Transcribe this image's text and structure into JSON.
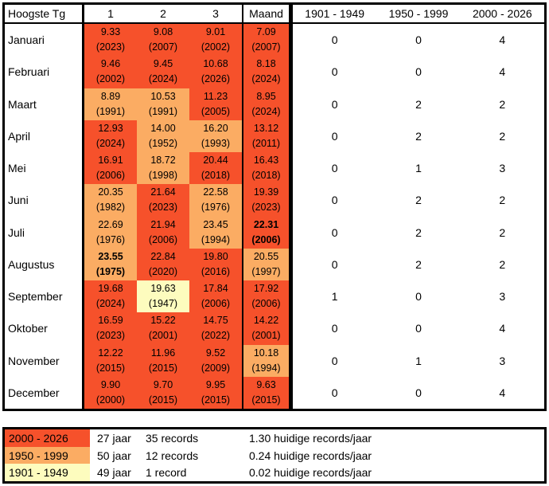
{
  "chart_data": {
    "type": "table",
    "title": "Hoogste Tg",
    "description": "Heatmap table of highest monthly mean temperature records (top 3 + month record) colored by period of occurrence, with record counts per period",
    "period_colors": {
      "2000-2026": "#F6512B",
      "1950-1999": "#FBAC63",
      "1901-1949": "#FDFCBE"
    },
    "header": {
      "label": "Hoogste Tg",
      "rank_cols": [
        "1",
        "2",
        "3",
        "Maand"
      ],
      "period_cols": [
        "1901 - 1949",
        "1950 - 1999",
        "2000 - 2026"
      ]
    },
    "rows": [
      {
        "month": "Januari",
        "cells": [
          {
            "v": "9.33",
            "y": "(2023)",
            "p": "2000-2026"
          },
          {
            "v": "9.08",
            "y": "(2007)",
            "p": "2000-2026"
          },
          {
            "v": "9.01",
            "y": "(2002)",
            "p": "2000-2026"
          },
          {
            "v": "7.09",
            "y": "(2007)",
            "p": "2000-2026"
          }
        ],
        "counts": [
          "0",
          "0",
          "4"
        ]
      },
      {
        "month": "Februari",
        "cells": [
          {
            "v": "9.46",
            "y": "(2002)",
            "p": "2000-2026"
          },
          {
            "v": "9.45",
            "y": "(2024)",
            "p": "2000-2026"
          },
          {
            "v": "10.68",
            "y": "(2026)",
            "p": "2000-2026"
          },
          {
            "v": "8.18",
            "y": "(2024)",
            "p": "2000-2026"
          }
        ],
        "counts": [
          "0",
          "0",
          "4"
        ]
      },
      {
        "month": "Maart",
        "cells": [
          {
            "v": "8.89",
            "y": "(1991)",
            "p": "1950-1999"
          },
          {
            "v": "10.53",
            "y": "(1991)",
            "p": "1950-1999"
          },
          {
            "v": "11.23",
            "y": "(2005)",
            "p": "2000-2026"
          },
          {
            "v": "8.95",
            "y": "(2024)",
            "p": "2000-2026"
          }
        ],
        "counts": [
          "0",
          "2",
          "2"
        ]
      },
      {
        "month": "April",
        "cells": [
          {
            "v": "12.93",
            "y": "(2024)",
            "p": "2000-2026"
          },
          {
            "v": "14.00",
            "y": "(1952)",
            "p": "1950-1999"
          },
          {
            "v": "16.20",
            "y": "(1993)",
            "p": "1950-1999"
          },
          {
            "v": "13.12",
            "y": "(2011)",
            "p": "2000-2026"
          }
        ],
        "counts": [
          "0",
          "2",
          "2"
        ]
      },
      {
        "month": "Mei",
        "cells": [
          {
            "v": "16.91",
            "y": "(2006)",
            "p": "2000-2026"
          },
          {
            "v": "18.72",
            "y": "(1998)",
            "p": "1950-1999"
          },
          {
            "v": "20.44",
            "y": "(2018)",
            "p": "2000-2026"
          },
          {
            "v": "16.43",
            "y": "(2018)",
            "p": "2000-2026"
          }
        ],
        "counts": [
          "0",
          "1",
          "3"
        ]
      },
      {
        "month": "Juni",
        "cells": [
          {
            "v": "20.35",
            "y": "(1982)",
            "p": "1950-1999"
          },
          {
            "v": "21.64",
            "y": "(2023)",
            "p": "2000-2026"
          },
          {
            "v": "22.58",
            "y": "(1976)",
            "p": "1950-1999"
          },
          {
            "v": "19.39",
            "y": "(2023)",
            "p": "2000-2026"
          }
        ],
        "counts": [
          "0",
          "2",
          "2"
        ]
      },
      {
        "month": "Juli",
        "cells": [
          {
            "v": "22.69",
            "y": "(1976)",
            "p": "1950-1999"
          },
          {
            "v": "21.94",
            "y": "(2006)",
            "p": "2000-2026"
          },
          {
            "v": "23.45",
            "y": "(1994)",
            "p": "1950-1999"
          },
          {
            "v": "22.31",
            "y": "(2006)",
            "p": "2000-2026",
            "bold": true
          }
        ],
        "counts": [
          "0",
          "2",
          "2"
        ]
      },
      {
        "month": "Augustus",
        "cells": [
          {
            "v": "23.55",
            "y": "(1975)",
            "p": "1950-1999",
            "bold": true
          },
          {
            "v": "22.84",
            "y": "(2020)",
            "p": "2000-2026"
          },
          {
            "v": "19.80",
            "y": "(2016)",
            "p": "2000-2026"
          },
          {
            "v": "20.55",
            "y": "(1997)",
            "p": "1950-1999"
          }
        ],
        "counts": [
          "0",
          "2",
          "2"
        ]
      },
      {
        "month": "September",
        "cells": [
          {
            "v": "19.68",
            "y": "(2024)",
            "p": "2000-2026"
          },
          {
            "v": "19.63",
            "y": "(1947)",
            "p": "1901-1949"
          },
          {
            "v": "17.84",
            "y": "(2006)",
            "p": "2000-2026"
          },
          {
            "v": "17.92",
            "y": "(2006)",
            "p": "2000-2026"
          }
        ],
        "counts": [
          "1",
          "0",
          "3"
        ]
      },
      {
        "month": "Oktober",
        "cells": [
          {
            "v": "16.59",
            "y": "(2023)",
            "p": "2000-2026"
          },
          {
            "v": "15.22",
            "y": "(2001)",
            "p": "2000-2026"
          },
          {
            "v": "14.75",
            "y": "(2022)",
            "p": "2000-2026"
          },
          {
            "v": "14.22",
            "y": "(2001)",
            "p": "2000-2026"
          }
        ],
        "counts": [
          "0",
          "0",
          "4"
        ]
      },
      {
        "month": "November",
        "cells": [
          {
            "v": "12.22",
            "y": "(2015)",
            "p": "2000-2026"
          },
          {
            "v": "11.96",
            "y": "(2015)",
            "p": "2000-2026"
          },
          {
            "v": "9.52",
            "y": "(2009)",
            "p": "2000-2026"
          },
          {
            "v": "10.18",
            "y": "(1994)",
            "p": "1950-1999"
          }
        ],
        "counts": [
          "0",
          "1",
          "3"
        ]
      },
      {
        "month": "December",
        "cells": [
          {
            "v": "9.90",
            "y": "(2000)",
            "p": "2000-2026"
          },
          {
            "v": "9.70",
            "y": "(2015)",
            "p": "2000-2026"
          },
          {
            "v": "9.95",
            "y": "(2015)",
            "p": "2000-2026"
          },
          {
            "v": "9.63",
            "y": "(2015)",
            "p": "2000-2026"
          }
        ],
        "counts": [
          "0",
          "0",
          "4"
        ]
      }
    ]
  },
  "legend": {
    "rows": [
      {
        "period": "2000 - 2026",
        "p": "2000-2026",
        "years": "27 jaar",
        "records": "35 records",
        "rate": "1.30 huidige records/jaar"
      },
      {
        "period": "1950 - 1999",
        "p": "1950-1999",
        "years": "50 jaar",
        "records": "12 records",
        "rate": "0.24 huidige records/jaar"
      },
      {
        "period": "1901 - 1949",
        "p": "1901-1949",
        "years": "49 jaar",
        "records": "1 record",
        "rate": "0.02 huidige records/jaar"
      }
    ]
  }
}
